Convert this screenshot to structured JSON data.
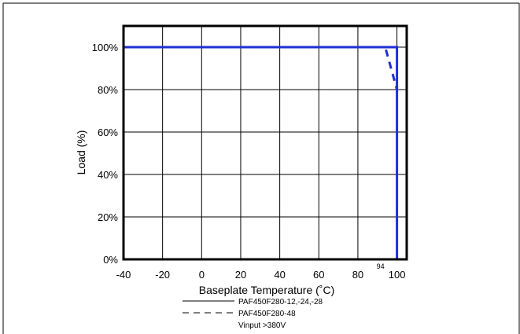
{
  "chart_data": {
    "type": "line",
    "xlabel": "Baseplate Temperature (˚C)",
    "ylabel": "Load (%)",
    "xlim": [
      -40,
      105
    ],
    "ylim": [
      0,
      110
    ],
    "x_ticks": [
      -40,
      -20,
      0,
      20,
      40,
      60,
      80,
      100
    ],
    "x_tick_labels": [
      "-40",
      "-20",
      "0",
      "20",
      "40",
      "60",
      "80",
      "100"
    ],
    "y_ticks": [
      0,
      20,
      40,
      60,
      80,
      100
    ],
    "y_tick_labels": [
      "0%",
      "20%",
      "40%",
      "60%",
      "80%",
      "100%"
    ],
    "grid": true,
    "annotation": {
      "x": 94,
      "text": "94"
    },
    "series": [
      {
        "name": "PAF450F280-12,-24,-28",
        "style": "solid",
        "x": [
          -40,
          100,
          100
        ],
        "y": [
          100,
          100,
          0
        ]
      },
      {
        "name": "PAF450F280-48",
        "style": "dashed",
        "x": [
          -40,
          94,
          100
        ],
        "y": [
          100,
          100,
          80
        ]
      }
    ],
    "legend": {
      "placement": "bottom",
      "entries": [
        {
          "label": "PAF450F280-12,-24,-28",
          "style": "solid"
        },
        {
          "label": "PAF450F280-48",
          "style": "dashed"
        }
      ],
      "note": "Vinput >380V"
    },
    "colors": {
      "line": "#1f2fd6",
      "axes": "#000000",
      "grid": "#000000"
    }
  }
}
